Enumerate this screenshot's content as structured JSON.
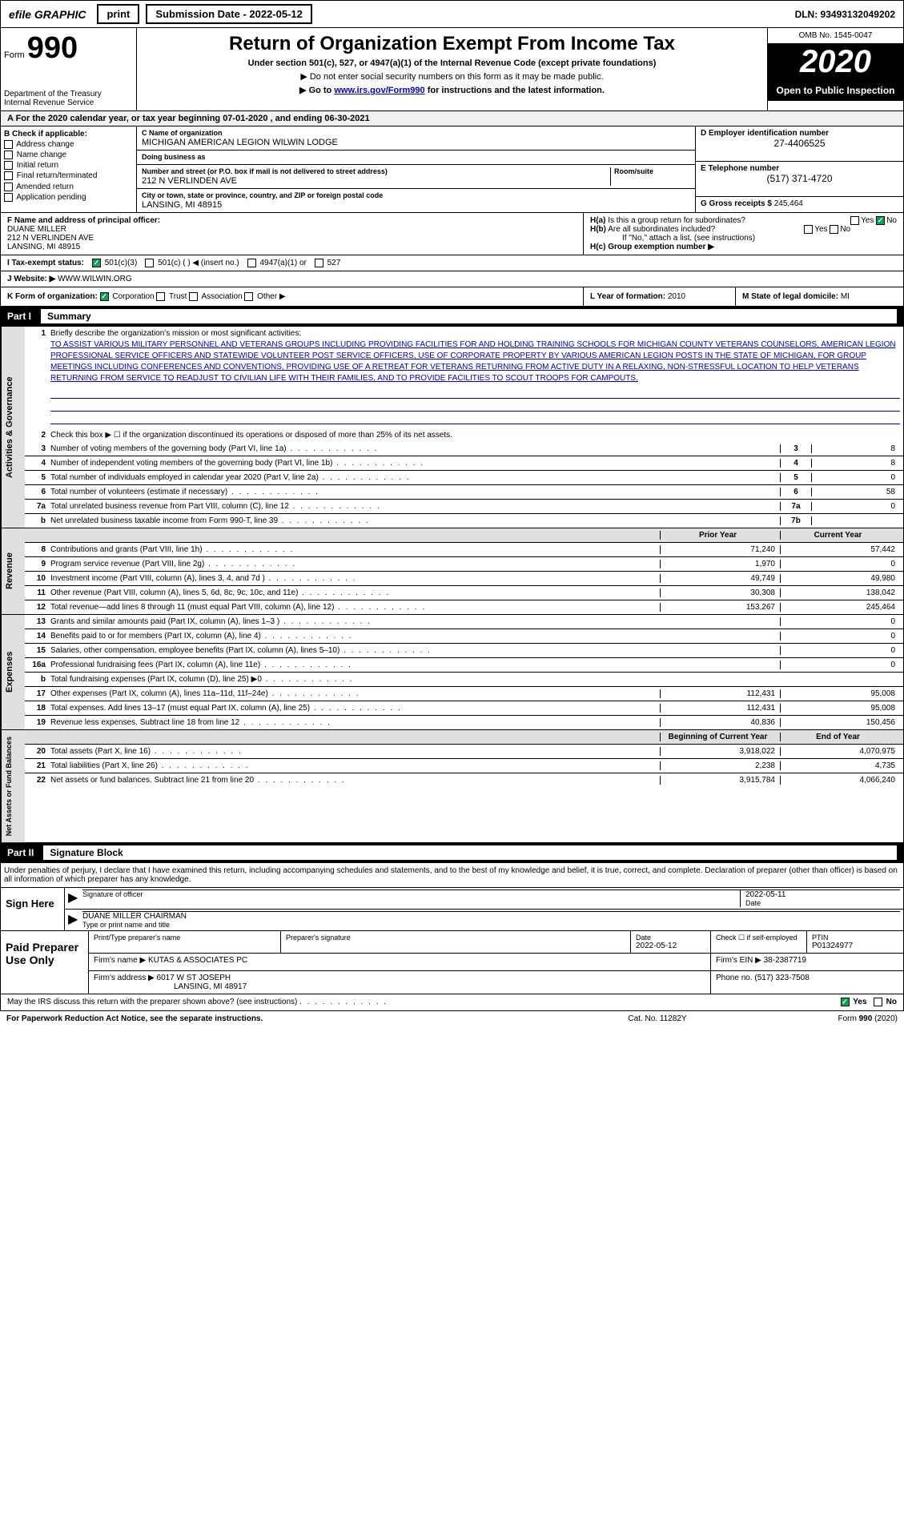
{
  "topbar": {
    "efile": "efile GRAPHIC",
    "print": "print",
    "subdate_label": "Submission Date - 2022-05-12",
    "dln": "DLN: 93493132049202"
  },
  "header": {
    "form_label": "Form",
    "form_num": "990",
    "dept": "Department of the Treasury\nInternal Revenue Service",
    "title": "Return of Organization Exempt From Income Tax",
    "subtitle": "Under section 501(c), 527, or 4947(a)(1) of the Internal Revenue Code (except private foundations)",
    "note1": "▶ Do not enter social security numbers on this form as it may be made public.",
    "note2_pre": "▶ Go to ",
    "note2_link": "www.irs.gov/Form990",
    "note2_post": " for instructions and the latest information.",
    "omb": "OMB No. 1545-0047",
    "year": "2020",
    "open_public": "Open to Public Inspection"
  },
  "tax_year": {
    "text": "A For the 2020 calendar year, or tax year beginning 07-01-2020   , and ending 06-30-2021"
  },
  "entity": {
    "b_label": "B Check if applicable:",
    "checks": [
      "Address change",
      "Name change",
      "Initial return",
      "Final return/terminated",
      "Amended return",
      "Application pending"
    ],
    "c_label": "C Name of organization",
    "c_name": "MICHIGAN AMERICAN LEGION WILWIN LODGE",
    "dba_label": "Doing business as",
    "street_label": "Number and street (or P.O. box if mail is not delivered to street address)",
    "street": "212 N VERLINDEN AVE",
    "room_label": "Room/suite",
    "city_label": "City or town, state or province, country, and ZIP or foreign postal code",
    "city": "LANSING, MI  48915",
    "d_label": "D Employer identification number",
    "d_ein": "27-4406525",
    "e_label": "E Telephone number",
    "e_phone": "(517) 371-4720",
    "g_label": "G Gross receipts $",
    "g_val": "245,464"
  },
  "fblock": {
    "f_label": "F Name and address of principal officer:",
    "f_name": "DUANE MILLER",
    "f_addr1": "212 N VERLINDEN AVE",
    "f_addr2": "LANSING, MI  48915",
    "ha_label": "H(a) Is this a group return for subordinates?",
    "hb_label": "H(b) Are all subordinates included?",
    "hb_note": "If \"No,\" attach a list. (see instructions)",
    "hc_label": "H(c) Group exemption number ▶"
  },
  "te": {
    "label": "I   Tax-exempt status:",
    "opts": [
      "501(c)(3)",
      "501(c) (   ) ◀ (insert no.)",
      "4947(a)(1) or",
      "527"
    ]
  },
  "web": {
    "label": "J   Website: ▶",
    "url": "WWW.WILWIN.ORG"
  },
  "klm": {
    "k": "K Form of organization:",
    "k_opts": [
      "Corporation",
      "Trust",
      "Association",
      "Other ▶"
    ],
    "l_label": "L Year of formation:",
    "l_val": "2010",
    "m_label": "M State of legal domicile:",
    "m_val": "MI"
  },
  "part1": {
    "header_num": "Part I",
    "header_title": "Summary",
    "line1_label": "Briefly describe the organization's mission or most significant activities:",
    "mission": "TO ASSIST VARIOUS MILITARY PERSONNEL AND VETERANS GROUPS INCLUDING PROVIDING FACILITIES FOR AND HOLDING TRAINING SCHOOLS FOR MICHIGAN COUNTY VETERANS COUNSELORS, AMERICAN LEGION PROFESSIONAL SERVICE OFFICERS AND STATEWIDE VOLUNTEER POST SERVICE OFFICERS, USE OF CORPORATE PROPERTY BY VARIOUS AMERICAN LEGION POSTS IN THE STATE OF MICHIGAN, FOR GROUP MEETINGS INCLUDING CONFERENCES AND CONVENTIONS, PROVIDING USE OF A RETREAT FOR VETERANS RETURNING FROM ACTIVE DUTY IN A RELAXING, NON-STRESSFUL LOCATION TO HELP VETERANS RETURNING FROM SERVICE TO READJUST TO CIVILIAN LIFE WITH THEIR FAMILIES, AND TO PROVIDE FACILITIES TO SCOUT TROOPS FOR CAMPOUTS.",
    "line2": "Check this box ▶ ☐ if the organization discontinued its operations or disposed of more than 25% of its net assets.",
    "lines_simple": [
      {
        "num": "3",
        "text": "Number of voting members of the governing body (Part VI, line 1a)",
        "box": "3",
        "val": "8"
      },
      {
        "num": "4",
        "text": "Number of independent voting members of the governing body (Part VI, line 1b)",
        "box": "4",
        "val": "8"
      },
      {
        "num": "5",
        "text": "Total number of individuals employed in calendar year 2020 (Part V, line 2a)",
        "box": "5",
        "val": "0"
      },
      {
        "num": "6",
        "text": "Total number of volunteers (estimate if necessary)",
        "box": "6",
        "val": "58"
      },
      {
        "num": "7a",
        "text": "Total unrelated business revenue from Part VIII, column (C), line 12",
        "box": "7a",
        "val": "0"
      },
      {
        "num": "b",
        "text": "Net unrelated business taxable income from Form 990-T, line 39",
        "box": "7b",
        "val": ""
      }
    ],
    "col_prior": "Prior Year",
    "col_curr": "Current Year",
    "vtabs": [
      "Activities & Governance",
      "Revenue",
      "Expenses",
      "Net Assets or Fund Balances"
    ],
    "revenue": [
      {
        "num": "8",
        "text": "Contributions and grants (Part VIII, line 1h)",
        "prior": "71,240",
        "curr": "57,442"
      },
      {
        "num": "9",
        "text": "Program service revenue (Part VIII, line 2g)",
        "prior": "1,970",
        "curr": "0"
      },
      {
        "num": "10",
        "text": "Investment income (Part VIII, column (A), lines 3, 4, and 7d )",
        "prior": "49,749",
        "curr": "49,980"
      },
      {
        "num": "11",
        "text": "Other revenue (Part VIII, column (A), lines 5, 6d, 8c, 9c, 10c, and 11e)",
        "prior": "30,308",
        "curr": "138,042"
      },
      {
        "num": "12",
        "text": "Total revenue—add lines 8 through 11 (must equal Part VIII, column (A), line 12)",
        "prior": "153,267",
        "curr": "245,464"
      }
    ],
    "expenses": [
      {
        "num": "13",
        "text": "Grants and similar amounts paid (Part IX, column (A), lines 1–3 )",
        "prior": "",
        "curr": "0"
      },
      {
        "num": "14",
        "text": "Benefits paid to or for members (Part IX, column (A), line 4)",
        "prior": "",
        "curr": "0"
      },
      {
        "num": "15",
        "text": "Salaries, other compensation, employee benefits (Part IX, column (A), lines 5–10)",
        "prior": "",
        "curr": "0"
      },
      {
        "num": "16a",
        "text": "Professional fundraising fees (Part IX, column (A), line 11e)",
        "prior": "",
        "curr": "0"
      },
      {
        "num": "b",
        "text": "Total fundraising expenses (Part IX, column (D), line 25) ▶0",
        "prior": "shade",
        "curr": "shade"
      },
      {
        "num": "17",
        "text": "Other expenses (Part IX, column (A), lines 11a–11d, 11f–24e)",
        "prior": "112,431",
        "curr": "95,008"
      },
      {
        "num": "18",
        "text": "Total expenses. Add lines 13–17 (must equal Part IX, column (A), line 25)",
        "prior": "112,431",
        "curr": "95,008"
      },
      {
        "num": "19",
        "text": "Revenue less expenses. Subtract line 18 from line 12",
        "prior": "40,836",
        "curr": "150,456"
      }
    ],
    "col_beg": "Beginning of Current Year",
    "col_end": "End of Year",
    "netassets": [
      {
        "num": "20",
        "text": "Total assets (Part X, line 16)",
        "prior": "3,918,022",
        "curr": "4,070,975"
      },
      {
        "num": "21",
        "text": "Total liabilities (Part X, line 26)",
        "prior": "2,238",
        "curr": "4,735"
      },
      {
        "num": "22",
        "text": "Net assets or fund balances. Subtract line 21 from line 20",
        "prior": "3,915,784",
        "curr": "4,066,240"
      }
    ]
  },
  "part2": {
    "header_num": "Part II",
    "header_title": "Signature Block",
    "decl": "Under penalties of perjury, I declare that I have examined this return, including accompanying schedules and statements, and to the best of my knowledge and belief, it is true, correct, and complete. Declaration of preparer (other than officer) is based on all information of which preparer has any knowledge."
  },
  "sign": {
    "left": "Sign Here",
    "sig_officer": "Signature of officer",
    "date_label": "Date",
    "date": "2022-05-11",
    "name": "DUANE MILLER  CHAIRMAN",
    "name_label": "Type or print name and title"
  },
  "prep": {
    "left": "Paid Preparer Use Only",
    "name_label": "Print/Type preparer's name",
    "sig_label": "Preparer's signature",
    "date_label": "Date",
    "date": "2022-05-12",
    "self_emp": "Check ☐ if self-employed",
    "ptin_label": "PTIN",
    "ptin": "P01324977",
    "firm_label": "Firm's name    ▶",
    "firm": "KUTAS & ASSOCIATES PC",
    "ein_label": "Firm's EIN ▶",
    "ein": "38-2387719",
    "addr_label": "Firm's address ▶",
    "addr1": "6017 W ST JOSEPH",
    "addr2": "LANSING, MI  48917",
    "phone_label": "Phone no.",
    "phone": "(517) 323-7508"
  },
  "discuss": {
    "text": "May the IRS discuss this return with the preparer shown above? (see instructions)",
    "yes": "Yes",
    "no": "No"
  },
  "footer": {
    "left": "For Paperwork Reduction Act Notice, see the separate instructions.",
    "mid": "Cat. No. 11282Y",
    "right": "Form 990 (2020)"
  }
}
